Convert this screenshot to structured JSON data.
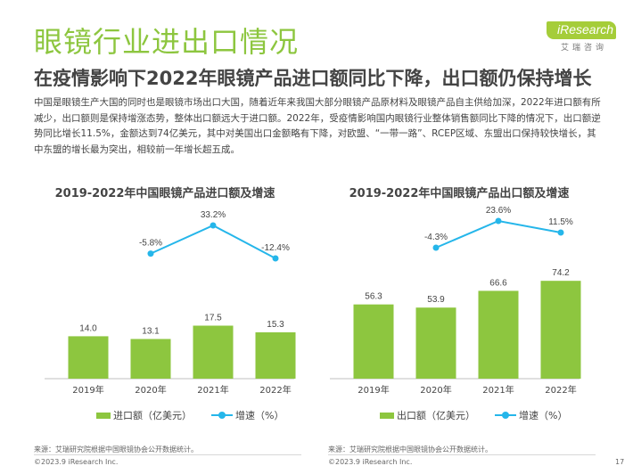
{
  "title": "眼镜行业进出口情况",
  "subtitle": "在疫情影响下2022年眼镜产品进口额同比下降，出口额仍保持增长",
  "logo": {
    "text": "iResearch",
    "cn": "艾瑞咨询"
  },
  "paragraph": "中国是眼镜生产大国的同时也是眼镜市场出口大国，随着近年来我国大部分眼镜产品原材料及眼镜产品自主供给加深，2022年进口额有所减少，出口额则是保持增涨态势，整体出口额远大于进口额。2022年，受疫情影响国内眼镜行业整体销售额同比下降的情况下，出口额逆势同比增长11.5%，金额达到74亿美元，其中对美国出口金额略有下降，对欧盟、“一带一路”、RCEP区域、东盟出口保持较快增长，其中东盟的增长最为突出，相较前一年增长超五成。",
  "colors": {
    "bar": "#8dc63f",
    "line": "#25b6ea",
    "accent": "#8dc63f"
  },
  "chart_data": [
    {
      "type": "bar",
      "title": "2019-2022年中国眼镜产品进口额及增速",
      "categories": [
        "2019年",
        "2020年",
        "2021年",
        "2022年"
      ],
      "series": [
        {
          "name": "进口额（亿美元）",
          "type": "bar",
          "values": [
            14.0,
            13.1,
            17.5,
            15.3
          ],
          "labels": [
            "14.0",
            "13.1",
            "17.5",
            "15.3"
          ]
        },
        {
          "name": "增速（%）",
          "type": "line",
          "values": [
            null,
            -5.8,
            33.2,
            -12.4
          ],
          "labels": [
            "",
            "-5.8%",
            "33.2%",
            "-12.4%"
          ]
        }
      ]
    },
    {
      "type": "bar",
      "title": "2019-2022年中国眼镜产品出口额及增速",
      "categories": [
        "2019年",
        "2020年",
        "2021年",
        "2022年"
      ],
      "series": [
        {
          "name": "出口额（亿美元）",
          "type": "bar",
          "values": [
            56.3,
            53.9,
            66.6,
            74.2
          ],
          "labels": [
            "56.3",
            "53.9",
            "66.6",
            "74.2"
          ]
        },
        {
          "name": "增速（%）",
          "type": "line",
          "values": [
            null,
            -4.3,
            23.6,
            11.5
          ],
          "labels": [
            "",
            "-4.3%",
            "23.6%",
            "11.5%"
          ]
        }
      ]
    }
  ],
  "legend": {
    "left_bar": "进口额（亿美元）",
    "right_bar": "出口额（亿美元）",
    "line": "增速（%）"
  },
  "source": "来源：艾瑞研究院根据中国眼镜协会公开数据统计。",
  "copyright": "©2023.9 iResearch Inc.",
  "page_number": "17"
}
